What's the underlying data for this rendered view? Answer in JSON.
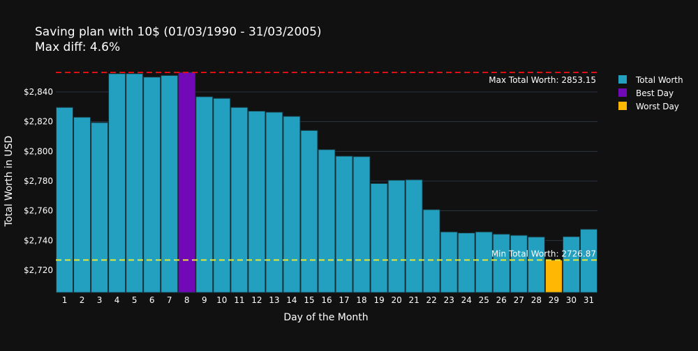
{
  "chart_data": {
    "type": "bar",
    "title_line1": "Saving plan with 10$ (01/03/1990 - 31/03/2005)",
    "title_line2": "Max diff: 4.6%",
    "xlabel": "Day of the Month",
    "ylabel": "Total Worth in USD",
    "categories": [
      "1",
      "2",
      "3",
      "4",
      "5",
      "6",
      "7",
      "8",
      "9",
      "10",
      "11",
      "12",
      "13",
      "14",
      "15",
      "16",
      "17",
      "18",
      "19",
      "20",
      "21",
      "22",
      "23",
      "24",
      "25",
      "26",
      "27",
      "28",
      "29",
      "30",
      "31"
    ],
    "values": [
      2829.6,
      2823.0,
      2819.4,
      2852.3,
      2852.3,
      2850.0,
      2851.1,
      2853.15,
      2836.8,
      2835.7,
      2829.6,
      2827.1,
      2826.4,
      2823.6,
      2814.1,
      2801.2,
      2796.8,
      2796.5,
      2778.4,
      2780.6,
      2780.9,
      2760.8,
      2745.8,
      2745.1,
      2745.8,
      2744.3,
      2743.5,
      2742.4,
      2726.87,
      2742.6,
      2747.6
    ],
    "ylim": [
      2705,
      2855
    ],
    "yticks": [
      2720,
      2740,
      2760,
      2780,
      2800,
      2820,
      2840
    ],
    "ytick_labels": [
      "$2,720",
      "$2,740",
      "$2,760",
      "$2,780",
      "$2,800",
      "$2,820",
      "$2,840"
    ],
    "best_index": 7,
    "worst_index": 28,
    "max_line": {
      "value": 2853.15,
      "label": "Max Total Worth: 2853.15",
      "color": "#dd1111"
    },
    "min_line": {
      "value": 2726.87,
      "label": "Min Total Worth: 2726.87",
      "color": "#e8e83a"
    },
    "legend": [
      {
        "label": "Total Worth",
        "color": "#23a0bf"
      },
      {
        "label": "Best Day",
        "color": "#7209b7"
      },
      {
        "label": "Worst Day",
        "color": "#ffb703"
      }
    ],
    "legend_position": "top-right",
    "colors": {
      "bar": "#23a0bf",
      "best": "#7209b7",
      "worst": "#ffb703",
      "grid": "#2c3440",
      "text": "#ffffff",
      "bar_edge": "#18323a"
    }
  }
}
